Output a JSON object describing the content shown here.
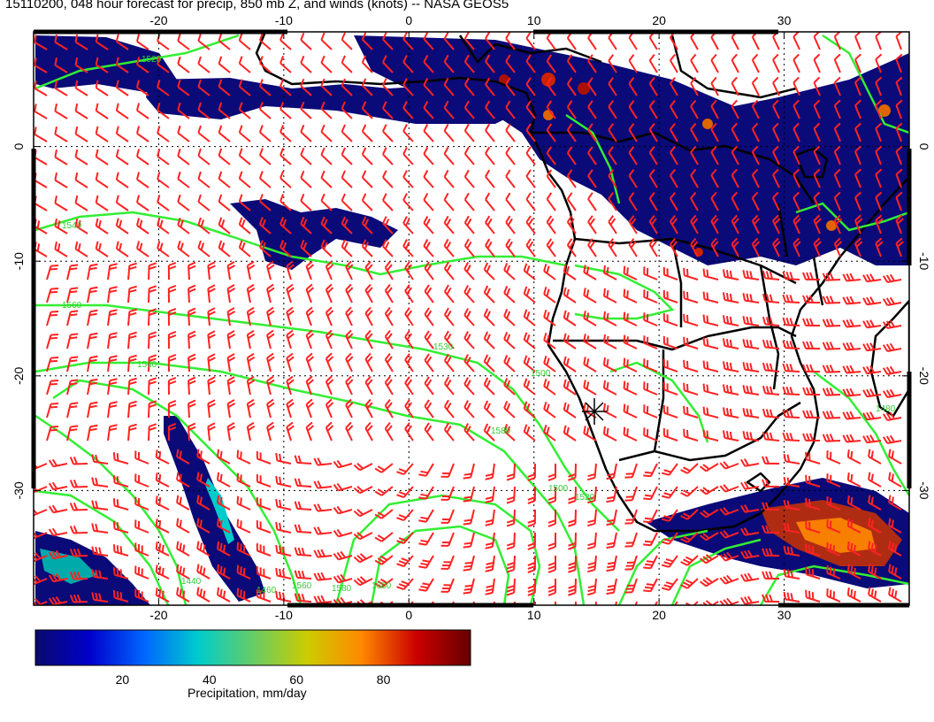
{
  "title": "15110200, 048 hour forecast for precip, 850 mb Z, and winds (knots) -- NASA GEOS5",
  "map": {
    "lon_range": [
      -30,
      40
    ],
    "lat_range": [
      -40,
      10
    ],
    "lon_ticks": [
      "-20",
      "-10",
      "0",
      "10",
      "20",
      "30"
    ],
    "lat_ticks": [
      "0",
      "-10",
      "-20",
      "-30"
    ],
    "graticule": "dotted",
    "colors": {
      "contour": "#33ee33",
      "barb": "#ff2222",
      "land": "#000000"
    }
  },
  "contours": {
    "unit": "m",
    "labels": [
      "1520",
      "1530",
      "1540",
      "1560",
      "1500",
      "1560",
      "1580",
      "1600",
      "1440",
      "1460",
      "1560",
      "1580",
      "1500",
      "1520",
      "1480"
    ]
  },
  "colorbar": {
    "label": "Precipitation, mm/day",
    "ticks": [
      "20",
      "40",
      "60",
      "80"
    ],
    "range": [
      0,
      100
    ],
    "colors": [
      "#0a0a6e",
      "#0000cc",
      "#0066ff",
      "#00cccc",
      "#66cc66",
      "#cccc00",
      "#ff8800",
      "#cc0000",
      "#660000"
    ]
  }
}
